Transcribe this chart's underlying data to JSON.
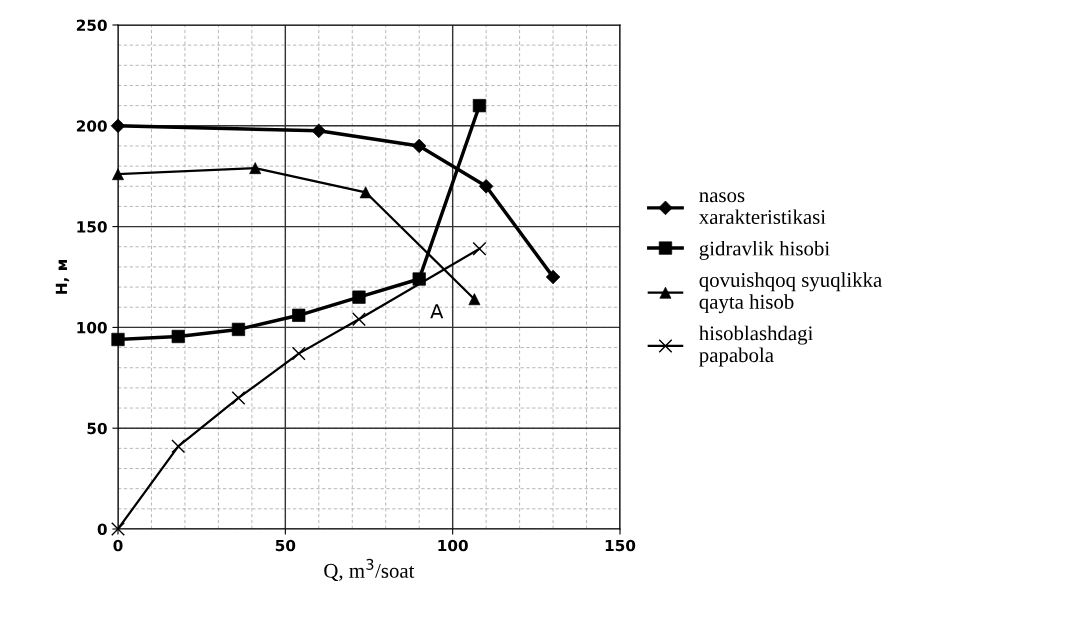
{
  "chart_data": {
    "type": "line",
    "xlabel": "Q, m$^{3}$/soat",
    "ylabel": "H, м",
    "xlim": [
      0,
      150
    ],
    "xticks": [
      0,
      50,
      100,
      150
    ],
    "ylim": [
      0,
      250
    ],
    "yticks": [
      0,
      50,
      100,
      150,
      200,
      250
    ],
    "grid": true,
    "legend": "right",
    "line_style": "solid",
    "series": [
      {
        "name": "nasos xarakteristikasi",
        "color": "#000000",
        "marker": "diamond",
        "x": [
          0,
          60,
          90,
          110,
          130
        ],
        "values": [
          200,
          197.5,
          190,
          170,
          125
        ]
      },
      {
        "name": "gidravlik hisobi",
        "color": "#000000",
        "marker": "square",
        "x": [
          0,
          18,
          36,
          54,
          72,
          90,
          108
        ],
        "values": [
          94,
          95.5,
          99,
          106,
          115,
          124,
          210
        ]
      },
      {
        "name": "qovuishqoq syuqlikka qayta hisob",
        "color": "#000000",
        "marker": "triangle",
        "x": [
          0,
          41,
          74,
          106.5
        ],
        "values": [
          176,
          179,
          167,
          114
        ]
      },
      {
        "name": "hisoblashdagi papabola",
        "color": "#000000",
        "marker": "cross",
        "x": [
          0,
          18,
          36,
          54,
          72,
          108
        ],
        "values": [
          0,
          41,
          65,
          87,
          104,
          139
        ]
      }
    ],
    "annotations": [
      "A"
    ]
  }
}
